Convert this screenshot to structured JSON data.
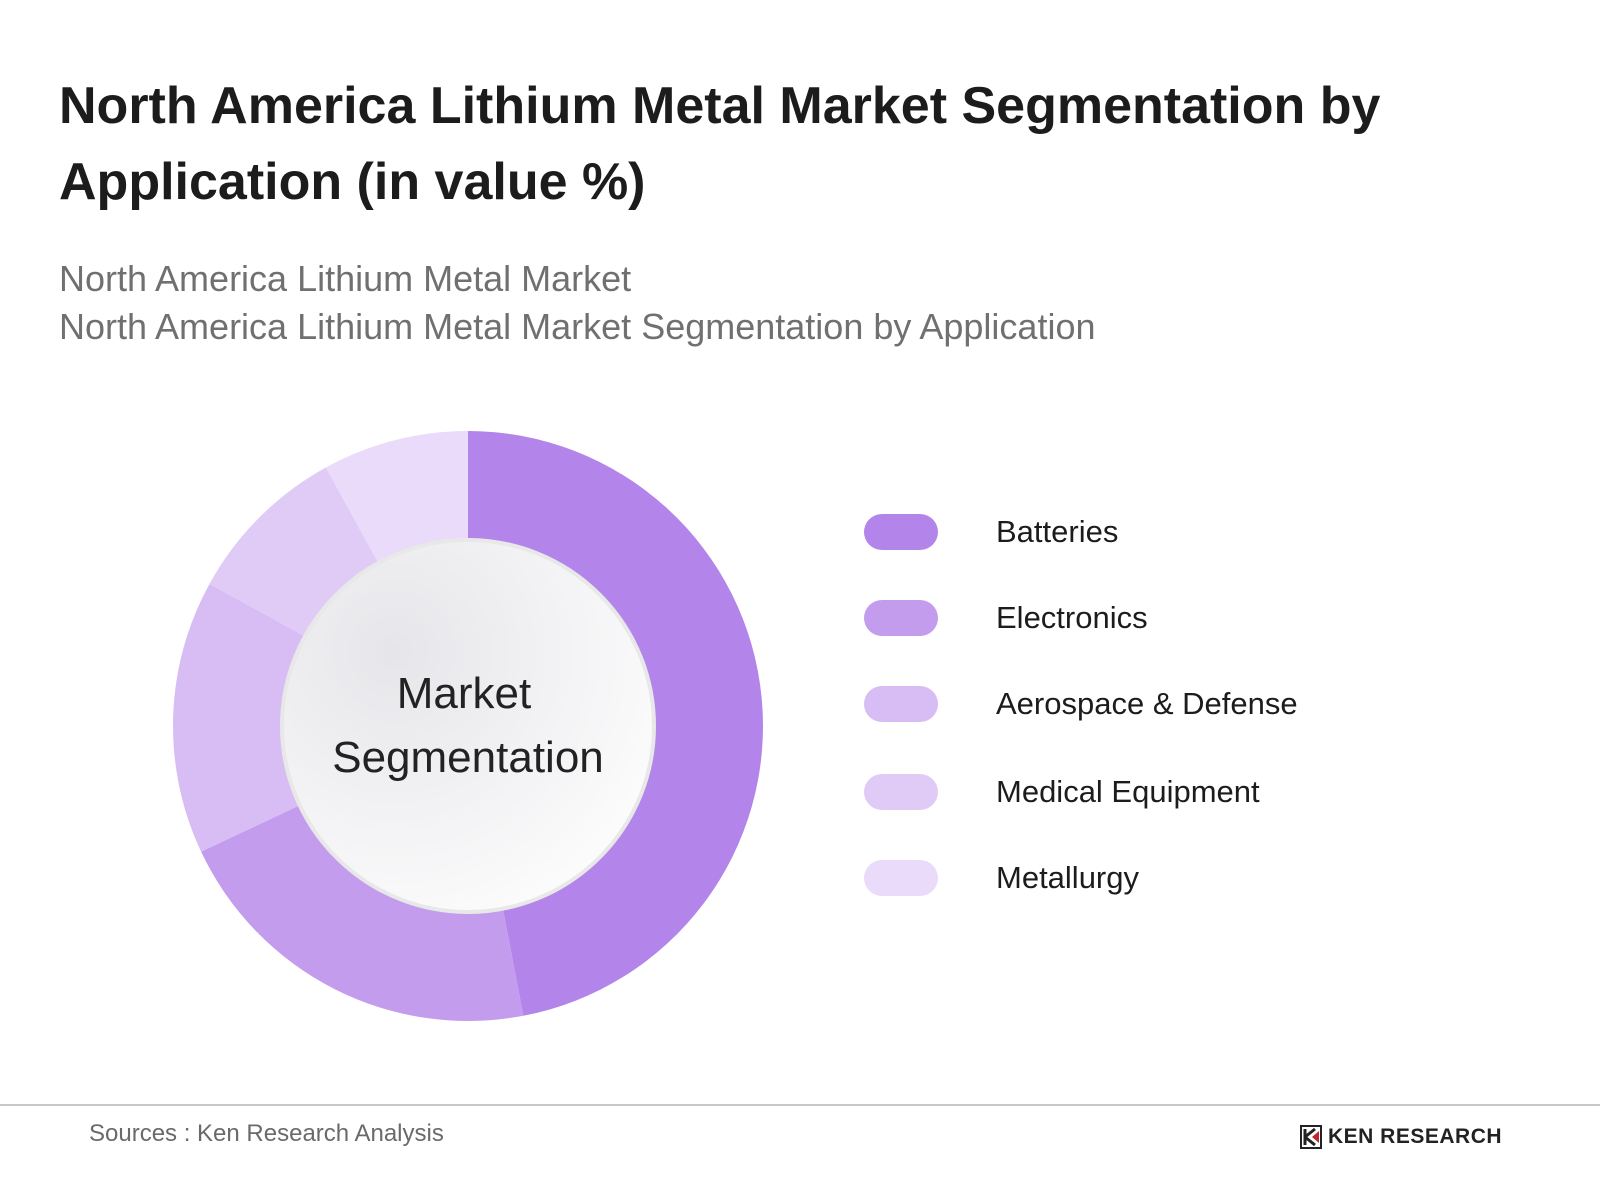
{
  "title": "North America Lithium Metal Market Segmentation by Application (in value %)",
  "subtitle_1": "North America Lithium Metal Market",
  "subtitle_2": "North America Lithium Metal Market Segmentation by Application",
  "chart_data": {
    "type": "pie",
    "variant": "donut",
    "center_label": [
      "Market",
      "Segmentation"
    ],
    "categories": [
      "Batteries",
      "Electronics",
      "Aerospace & Defense",
      "Medical Equipment",
      "Metallurgy"
    ],
    "values": [
      47,
      21,
      15,
      9,
      8
    ],
    "colors": [
      "#b384ea",
      "#c49cee",
      "#d8bdf4",
      "#e0cbf6",
      "#e9dbf9"
    ],
    "legend_position": "right"
  },
  "footer": {
    "source": "Sources : Ken Research Analysis",
    "logo_text": "KEN RESEARCH"
  }
}
